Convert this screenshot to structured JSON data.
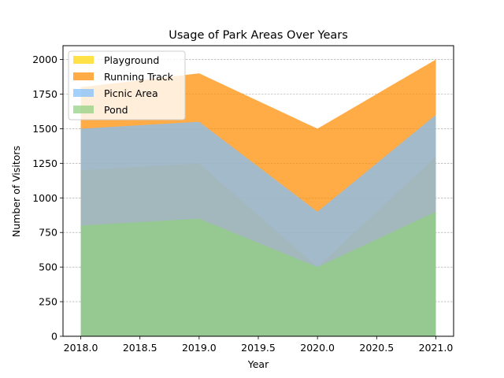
{
  "chart_data": {
    "type": "area",
    "title": "Usage of Park Areas Over Years",
    "xlabel": "Year",
    "ylabel": "Number of Visitors",
    "x": [
      2018,
      2019,
      2020,
      2021
    ],
    "xlim": [
      2017.85,
      2021.15
    ],
    "ylim": [
      0,
      2100
    ],
    "xticks": [
      2018.0,
      2018.5,
      2019.0,
      2019.5,
      2020.0,
      2020.5,
      2021.0
    ],
    "xtick_labels": [
      "2018.0",
      "2018.5",
      "2019.0",
      "2019.5",
      "2020.0",
      "2020.5",
      "2021.0"
    ],
    "yticks": [
      0,
      250,
      500,
      750,
      1000,
      1250,
      1500,
      1750,
      2000
    ],
    "ytick_labels": [
      "0",
      "250",
      "500",
      "750",
      "1000",
      "1250",
      "1500",
      "1750",
      "2000"
    ],
    "grid": "y-dashed",
    "legend_position": "top-left",
    "series": [
      {
        "name": "Playground",
        "color": "#FFD700",
        "values": [
          1200,
          1250,
          500,
          1300
        ]
      },
      {
        "name": "Running Track",
        "color": "#FF8C00",
        "values": [
          1800,
          1900,
          1500,
          2000
        ]
      },
      {
        "name": "Picnic Area",
        "color": "#7FBFFF",
        "values": [
          1500,
          1550,
          900,
          1600
        ]
      },
      {
        "name": "Pond",
        "color": "#90D080",
        "values": [
          800,
          850,
          500,
          900
        ]
      }
    ]
  }
}
